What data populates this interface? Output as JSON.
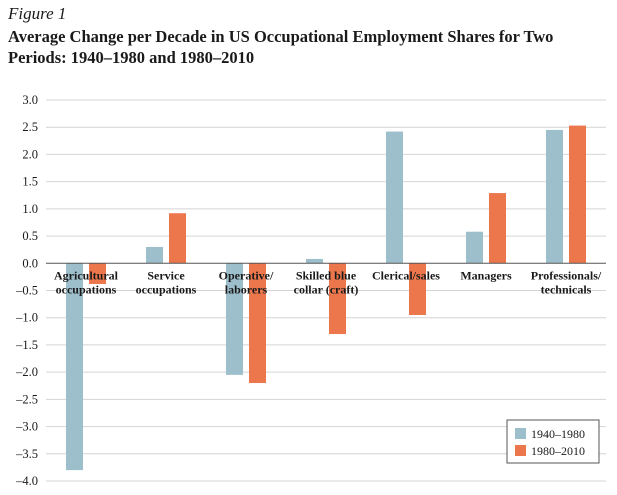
{
  "figure_label": "Figure 1",
  "chart_data": {
    "type": "bar",
    "title": "Average Change per Decade in US Occupational Employment Shares for Two Periods: 1940–1980 and 1980–2010",
    "categories": [
      [
        "Agricultural",
        "occupations"
      ],
      [
        "Service",
        "occupations"
      ],
      [
        "Operative/",
        "laborers"
      ],
      [
        "Skilled blue",
        "collar (craft)"
      ],
      [
        "Clerical/sales"
      ],
      [
        "Managers"
      ],
      [
        "Professionals/",
        "technicals"
      ]
    ],
    "series": [
      {
        "name": "1940–1980",
        "color": "#9dbfcb",
        "values": [
          -3.8,
          0.3,
          -2.05,
          0.08,
          2.42,
          0.58,
          2.45
        ]
      },
      {
        "name": "1980–2010",
        "color": "#ec774c",
        "values": [
          -0.38,
          0.92,
          -2.2,
          -1.3,
          -0.95,
          1.29,
          2.53
        ]
      }
    ],
    "ylim": [
      -4.0,
      3.0
    ],
    "yticks": [
      "3.0",
      "2.5",
      "2.0",
      "1.5",
      "1.0",
      "0.5",
      "0.0",
      "–0.5",
      "–1.0",
      "–1.5",
      "–2.0",
      "–2.5",
      "–3.0",
      "–3.5",
      "–4.0"
    ],
    "ytick_values": [
      3.0,
      2.5,
      2.0,
      1.5,
      1.0,
      0.5,
      0.0,
      -0.5,
      -1.0,
      -1.5,
      -2.0,
      -2.5,
      -3.0,
      -3.5,
      -4.0
    ],
    "grid": true,
    "legend_position": "bottom-right"
  }
}
